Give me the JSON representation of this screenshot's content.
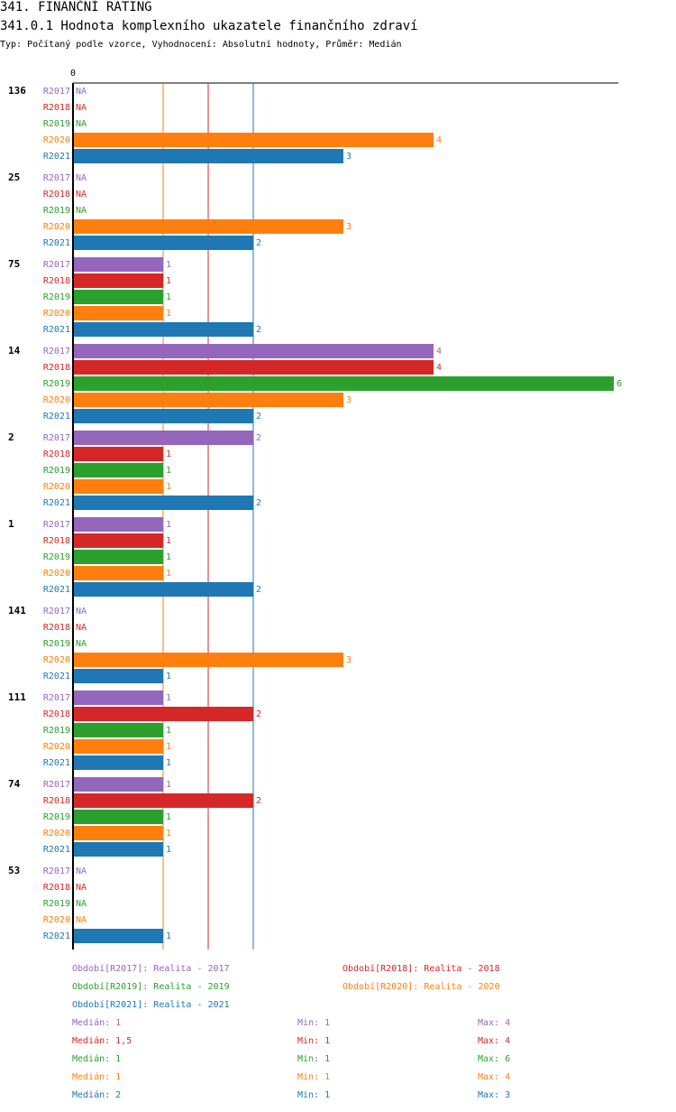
{
  "header": {
    "title": "341. FINANČNÍ RATING",
    "subtitle": "341.0.1 Hodnota komplexního ukazatele finančního zdraví",
    "meta": "Typ: Počítaný podle vzorce, Vyhodnocení: Absolutní hodnoty, Průměr: Medián"
  },
  "colors": {
    "R2017": "#9467bd",
    "R2018": "#d62728",
    "R2019": "#2ca02c",
    "R2020": "#ff7f0e",
    "R2021": "#1f77b4"
  },
  "chart_data": {
    "type": "bar",
    "orientation": "horizontal",
    "x_tick_labels": [
      "0"
    ],
    "x_range": [
      0,
      6
    ],
    "series_names": [
      "R2017",
      "R2018",
      "R2019",
      "R2020",
      "R2021"
    ],
    "groups": [
      {
        "label": "136",
        "values": [
          null,
          null,
          null,
          4,
          3
        ]
      },
      {
        "label": "25",
        "values": [
          null,
          null,
          null,
          3,
          2
        ]
      },
      {
        "label": "75",
        "values": [
          1,
          1,
          1,
          1,
          2
        ]
      },
      {
        "label": "14",
        "values": [
          4,
          4,
          6,
          3,
          2
        ]
      },
      {
        "label": "2",
        "values": [
          2,
          1,
          1,
          1,
          2
        ]
      },
      {
        "label": "1",
        "values": [
          1,
          1,
          1,
          1,
          2
        ]
      },
      {
        "label": "141",
        "values": [
          null,
          null,
          null,
          3,
          1
        ]
      },
      {
        "label": "111",
        "values": [
          1,
          2,
          1,
          1,
          1
        ]
      },
      {
        "label": "74",
        "values": [
          1,
          2,
          1,
          1,
          1
        ]
      },
      {
        "label": "53",
        "values": [
          null,
          null,
          null,
          null,
          1
        ]
      }
    ],
    "missing_label": "NA",
    "median_lines": [
      {
        "series": "R2017",
        "value": 1
      },
      {
        "series": "R2018",
        "value": 1.5
      },
      {
        "series": "R2019",
        "value": 1
      },
      {
        "series": "R2020",
        "value": 1
      },
      {
        "series": "R2021",
        "value": 2
      }
    ]
  },
  "legend": [
    {
      "series": "R2017",
      "text": "Období[R2017]: Realita - 2017"
    },
    {
      "series": "R2018",
      "text": "Období[R2018]: Realita - 2018"
    },
    {
      "series": "R2019",
      "text": "Období[R2019]: Realita - 2019"
    },
    {
      "series": "R2020",
      "text": "Období[R2020]: Realita - 2020"
    },
    {
      "series": "R2021",
      "text": "Období[R2021]: Realita - 2021"
    }
  ],
  "stats": [
    {
      "series": "R2017",
      "median": "Medián: 1",
      "min": "Min: 1",
      "max": "Max: 4"
    },
    {
      "series": "R2018",
      "median": "Medián: 1,5",
      "min": "Min: 1",
      "max": "Max: 4"
    },
    {
      "series": "R2019",
      "median": "Medián: 1",
      "min": "Min: 1",
      "max": "Max: 6"
    },
    {
      "series": "R2020",
      "median": "Medián: 1",
      "min": "Min: 1",
      "max": "Max: 4"
    },
    {
      "series": "R2021",
      "median": "Medián: 2",
      "min": "Min: 1",
      "max": "Max: 3"
    }
  ]
}
